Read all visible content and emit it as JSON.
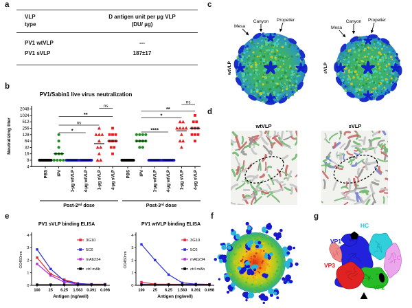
{
  "panels": {
    "a": {
      "letter": "a",
      "table": {
        "header": {
          "col1_line1": "VLP",
          "col1_line2": "type",
          "col2_line1": "D antigen unit per µg VLP",
          "col2_line2": "(DU/ µg)"
        },
        "rows": [
          {
            "name": "PV1 wtVLP",
            "value": "---"
          },
          {
            "name": "PV1 sVLP",
            "value": "187±17"
          }
        ]
      }
    },
    "b": {
      "letter": "b"
    },
    "c": {
      "letter": "c",
      "annotations": [
        "Mesa",
        "Canyon",
        "Propeller"
      ],
      "maps": [
        {
          "label": "wtVLP"
        },
        {
          "label": "sVLP"
        }
      ]
    },
    "d": {
      "letter": "d",
      "maps": [
        {
          "title": "wtVLP"
        },
        {
          "title": "sVLP"
        }
      ]
    },
    "e": {
      "letter": "e"
    },
    "f": {
      "letter": "f"
    },
    "g": {
      "letter": "g",
      "labels": [
        {
          "text": "HC",
          "color": "#17c8dc"
        },
        {
          "text": "VP1",
          "color": "#1a1ae0"
        },
        {
          "text": "VP3",
          "color": "#e81212"
        },
        {
          "text": "LC",
          "color": "#f07ae8"
        },
        {
          "text": "VP2",
          "color": "#14ad14"
        }
      ],
      "symmetry_symbols": [
        "pentagon-5-fold",
        "ellipse-2-fold",
        "triangle-3-fold"
      ]
    }
  },
  "chart_data": [
    {
      "type": "scatter",
      "title": "PV1/Sabin1 live virus neutralization",
      "ylabel": "Neutralizing titer",
      "yscale": "log2",
      "yticks": [
        4,
        8,
        16,
        32,
        64,
        128,
        256,
        512,
        1024,
        2048
      ],
      "categories": [
        "PBS",
        "IPV",
        "1-µg wtVLP",
        "4-µg wtVLP",
        "1-µg sVLP",
        "4-µg sVLP"
      ],
      "groups": [
        {
          "label_parts": [
            "Post-2",
            "nd",
            " dose"
          ],
          "series": [
            {
              "category": "PBS",
              "color": "#000000",
              "marker": "circle",
              "values": [
                8,
                8,
                8,
                8,
                8,
                8,
                8,
                8,
                8,
                8
              ],
              "median": 8
            },
            {
              "category": "IPV",
              "color": "#1e8c1e",
              "marker": "circle",
              "values": [
                8,
                8,
                8,
                8,
                16,
                16,
                16,
                32,
                64,
                128
              ],
              "median": 16
            },
            {
              "category": "1-µg wtVLP",
              "color": "#1616cc",
              "marker": "circle",
              "values": [
                8,
                8,
                8,
                8,
                8,
                8,
                8,
                8,
                8,
                8
              ],
              "median": 8
            },
            {
              "category": "4-µg wtVLP",
              "color": "#1616cc",
              "marker": "circle",
              "values": [
                8,
                8,
                8,
                8,
                8,
                8,
                8,
                8,
                8,
                8
              ],
              "median": 8
            },
            {
              "category": "1-µg sVLP",
              "color": "#e41a1c",
              "marker": "triangle",
              "values": [
                8,
                8,
                16,
                32,
                32,
                64,
                128,
                128,
                128,
                256
              ],
              "median": 48
            },
            {
              "category": "4-µg sVLP",
              "color": "#e41a1c",
              "marker": "square",
              "values": [
                16,
                32,
                32,
                64,
                64,
                64,
                128,
                128,
                128,
                256
              ],
              "median": 64
            }
          ]
        },
        {
          "label_parts": [
            "Post-3",
            "rd",
            " dose"
          ],
          "series": [
            {
              "category": "PBS",
              "color": "#000000",
              "marker": "circle",
              "values": [
                8,
                8,
                8,
                8,
                8,
                8,
                8,
                8,
                8,
                8
              ],
              "median": 8
            },
            {
              "category": "IPV",
              "color": "#1e8c1e",
              "marker": "circle",
              "values": [
                32,
                32,
                64,
                64,
                64,
                64,
                128,
                128,
                128,
                128
              ],
              "median": 64
            },
            {
              "category": "1-µg wtVLP",
              "color": "#1616cc",
              "marker": "circle",
              "values": [
                8,
                8,
                8,
                8,
                8,
                8,
                8,
                8,
                8,
                8
              ],
              "median": 8
            },
            {
              "category": "4-µg wtVLP",
              "color": "#1616cc",
              "marker": "circle",
              "values": [
                8,
                8,
                8,
                8,
                8,
                8,
                8,
                8,
                8,
                8
              ],
              "median": 8
            },
            {
              "category": "1-µg sVLP",
              "color": "#e41a1c",
              "marker": "triangle",
              "values": [
                32,
                64,
                64,
                128,
                256,
                256,
                256,
                256,
                512,
                512
              ],
              "median": 192
            },
            {
              "category": "4-µg sVLP",
              "color": "#e41a1c",
              "marker": "square",
              "values": [
                64,
                128,
                128,
                128,
                256,
                256,
                256,
                512,
                512,
                1024
              ],
              "median": 256
            }
          ]
        }
      ],
      "significance": [
        {
          "group": 0,
          "from": 1,
          "to": 3,
          "label": "*"
        },
        {
          "group": 0,
          "from": 1,
          "to": 4,
          "label": "ns"
        },
        {
          "group": 0,
          "from": 1,
          "to": 5,
          "label": "**"
        },
        {
          "group": 0,
          "from": 4,
          "to": 5,
          "label": "ns"
        },
        {
          "group": 1,
          "from": 1,
          "to": 3,
          "label": "****"
        },
        {
          "group": 1,
          "from": 1,
          "to": 4,
          "label": "*"
        },
        {
          "group": 1,
          "from": 1,
          "to": 5,
          "label": "**"
        },
        {
          "group": 1,
          "from": 4,
          "to": 5,
          "label": "ns"
        }
      ]
    },
    {
      "type": "line",
      "title": "PV1 sVLP binding ELISA",
      "xlabel": "Antigen (ng/well)",
      "ylabel": "OD450nm",
      "x_labels": [
        "100",
        "25",
        "6.25",
        "1.563",
        "0.391",
        "0.098"
      ],
      "ylim": [
        0,
        4
      ],
      "yticks": [
        0,
        1,
        2,
        3,
        4
      ],
      "legend_position": "top-right",
      "series": [
        {
          "name": "3G10",
          "color": "#e3242b",
          "values": [
            2.2,
            0.9,
            0.45,
            0.15,
            0.08,
            0.08
          ]
        },
        {
          "name": "5C6",
          "color": "#2b2bdd",
          "values": [
            2.85,
            1.3,
            0.35,
            0.15,
            0.08,
            0.08
          ]
        },
        {
          "name": "mAb234",
          "color": "#b02fd4",
          "values": [
            1.7,
            0.78,
            0.25,
            0.1,
            0.07,
            0.07
          ]
        },
        {
          "name": "ctrl mAb",
          "color": "#000000",
          "values": [
            0.05,
            0.05,
            0.05,
            0.05,
            0.05,
            0.05
          ]
        }
      ]
    },
    {
      "type": "line",
      "title": "PV1 wtVLP binding ELISA",
      "xlabel": "Antigen (ng/well)",
      "ylabel": "OD450nm",
      "x_labels": [
        "100",
        "25",
        "6.25",
        "1.563",
        "0.391",
        "0.098"
      ],
      "ylim": [
        0,
        4
      ],
      "yticks": [
        0,
        1,
        2,
        3,
        4
      ],
      "legend_position": "top-right",
      "series": [
        {
          "name": "3G10",
          "color": "#e3242b",
          "values": [
            0.25,
            0.1,
            0.08,
            0.08,
            0.08,
            0.08
          ]
        },
        {
          "name": "5C6",
          "color": "#2b2bdd",
          "values": [
            3.25,
            2.0,
            0.85,
            0.2,
            0.1,
            0.07
          ]
        },
        {
          "name": "mAb234",
          "color": "#b02fd4",
          "values": [
            0.1,
            0.06,
            0.05,
            0.05,
            0.05,
            0.05
          ]
        },
        {
          "name": "ctrl mAb",
          "color": "#000000",
          "values": [
            0.05,
            0.05,
            0.05,
            0.05,
            0.05,
            0.05
          ]
        }
      ]
    }
  ]
}
